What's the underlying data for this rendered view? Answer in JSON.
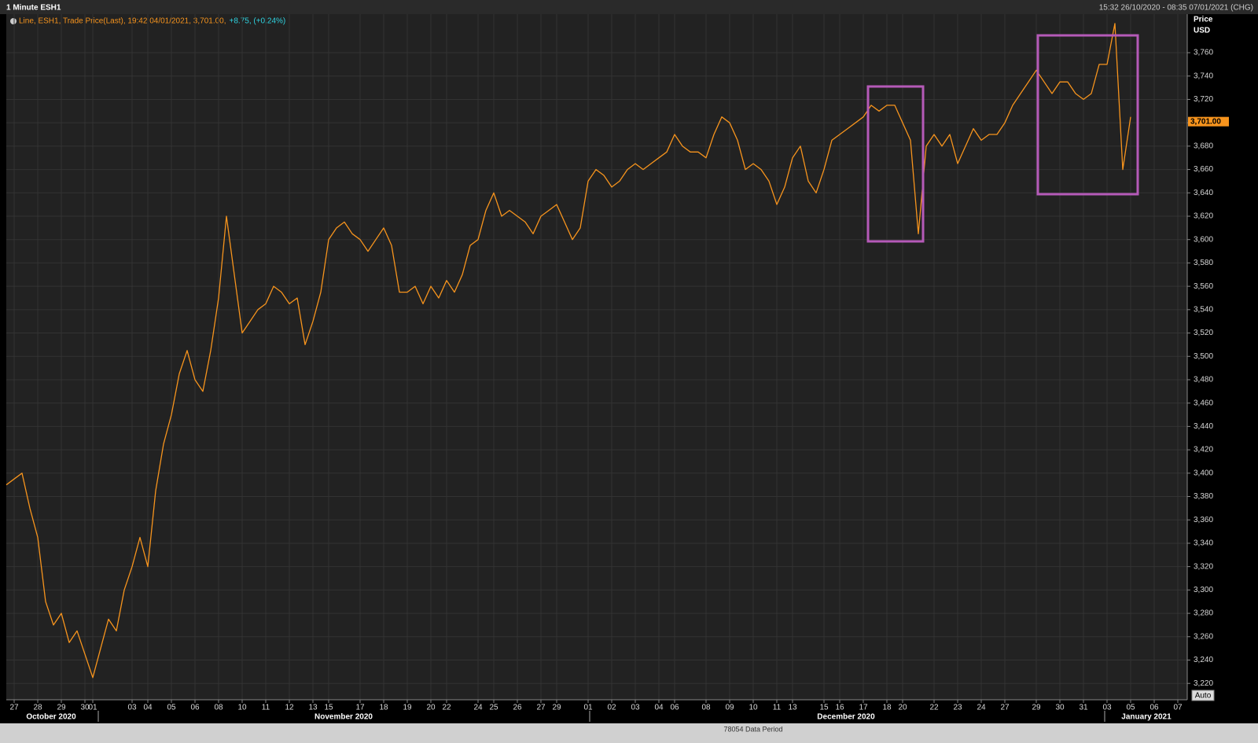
{
  "chart_data": {
    "type": "line",
    "title": "1 Minute ESH1",
    "date_range": "15:32 26/10/2020 - 08:35 07/01/2021 (CHG)",
    "change_label": "+8.75, (+0.24%)",
    "y_axis_label": "Price",
    "y_axis_unit": "USD",
    "auto_button": "Auto",
    "footer": "78054 Data Period",
    "months": [
      "October 2020",
      "November 2020",
      "December 2020",
      "January 2021"
    ],
    "categories": [
      null,
      "27",
      null,
      null,
      "28",
      null,
      null,
      "29",
      null,
      null,
      "30",
      "01",
      null,
      null,
      null,
      null,
      "03",
      null,
      "04",
      null,
      null,
      "05",
      null,
      null,
      "06",
      null,
      null,
      "08",
      null,
      null,
      "10",
      null,
      null,
      "11",
      null,
      null,
      "12",
      null,
      null,
      "13",
      null,
      "15",
      null,
      null,
      null,
      "17",
      null,
      null,
      "18",
      null,
      null,
      "19",
      null,
      null,
      "20",
      null,
      "22",
      null,
      null,
      null,
      "24",
      null,
      "25",
      null,
      null,
      "26",
      null,
      null,
      "27",
      null,
      "29",
      null,
      null,
      null,
      "01",
      null,
      null,
      "02",
      null,
      null,
      "03",
      null,
      null,
      "04",
      null,
      "06",
      null,
      null,
      null,
      "08",
      null,
      null,
      "09",
      null,
      null,
      "10",
      null,
      null,
      "11",
      null,
      "13",
      null,
      null,
      null,
      "15",
      null,
      "16",
      null,
      null,
      "17",
      null,
      null,
      "18",
      null,
      "20",
      null,
      null,
      null,
      "22",
      null,
      null,
      "23",
      null,
      null,
      "24",
      null,
      null,
      "27",
      null,
      null,
      null,
      "29",
      null,
      null,
      "30",
      null,
      null,
      "31",
      null,
      null,
      "03",
      null,
      null,
      "05",
      null,
      null,
      "06",
      null,
      null,
      "07"
    ],
    "series": [
      {
        "name": "Line, ESH1, Trade Price(Last), 19:42 04/01/2021, 3,701.00,",
        "color": "#f7941d",
        "values": [
          3390,
          3395,
          3400,
          3370,
          3345,
          3290,
          3270,
          3280,
          3255,
          3265,
          3245,
          3225,
          3250,
          3275,
          3265,
          3300,
          3320,
          3345,
          3320,
          3385,
          3425,
          3450,
          3485,
          3505,
          3480,
          3470,
          3505,
          3550,
          3620,
          3570,
          3520,
          3530,
          3540,
          3545,
          3560,
          3555,
          3545,
          3550,
          3510,
          3530,
          3555,
          3600,
          3610,
          3615,
          3605,
          3600,
          3590,
          3600,
          3610,
          3595,
          3555,
          3555,
          3560,
          3545,
          3560,
          3550,
          3565,
          3555,
          3570,
          3595,
          3600,
          3625,
          3640,
          3620,
          3625,
          3620,
          3615,
          3605,
          3620,
          3625,
          3630,
          3615,
          3600,
          3610,
          3650,
          3660,
          3655,
          3645,
          3650,
          3660,
          3665,
          3660,
          3665,
          3670,
          3675,
          3690,
          3680,
          3675,
          3675,
          3670,
          3690,
          3705,
          3700,
          3685,
          3660,
          3665,
          3660,
          3650,
          3630,
          3645,
          3670,
          3680,
          3650,
          3640,
          3660,
          3685,
          3690,
          3695,
          3700,
          3705,
          3715,
          3710,
          3715,
          3715,
          3700,
          3685,
          3605,
          3680,
          3690,
          3680,
          3690,
          3665,
          3680,
          3695,
          3685,
          3690,
          3690,
          3700,
          3715,
          3725,
          3735,
          3745,
          3735,
          3725,
          3735,
          3735,
          3725,
          3720,
          3725,
          3750,
          3750,
          3785,
          3660,
          3705,
          null,
          null,
          null,
          null,
          null,
          null
        ]
      }
    ],
    "last_price": {
      "value": 3701,
      "label": "3,701.00"
    },
    "ylim": [
      3206,
      3793
    ],
    "yticks": [
      {
        "value": 3220,
        "label": "3,220"
      },
      {
        "value": 3240,
        "label": "3,240"
      },
      {
        "value": 3260,
        "label": "3,260"
      },
      {
        "value": 3280,
        "label": "3,280"
      },
      {
        "value": 3300,
        "label": "3,300"
      },
      {
        "value": 3320,
        "label": "3,320"
      },
      {
        "value": 3340,
        "label": "3,340"
      },
      {
        "value": 3360,
        "label": "3,360"
      },
      {
        "value": 3380,
        "label": "3,380"
      },
      {
        "value": 3400,
        "label": "3,400"
      },
      {
        "value": 3420,
        "label": "3,420"
      },
      {
        "value": 3440,
        "label": "3,440"
      },
      {
        "value": 3460,
        "label": "3,460"
      },
      {
        "value": 3480,
        "label": "3,480"
      },
      {
        "value": 3500,
        "label": "3,500"
      },
      {
        "value": 3520,
        "label": "3,520"
      },
      {
        "value": 3540,
        "label": "3,540"
      },
      {
        "value": 3560,
        "label": "3,560"
      },
      {
        "value": 3580,
        "label": "3,580"
      },
      {
        "value": 3600,
        "label": "3,600"
      },
      {
        "value": 3620,
        "label": "3,620"
      },
      {
        "value": 3640,
        "label": "3,640"
      },
      {
        "value": 3660,
        "label": "3,660"
      },
      {
        "value": 3680,
        "label": "3,680"
      },
      {
        "value": 3700,
        "label": "3,700"
      },
      {
        "value": 3720,
        "label": "3,720"
      },
      {
        "value": 3740,
        "label": "3,740"
      },
      {
        "value": 3760,
        "label": "3,760"
      }
    ],
    "grid": true
  }
}
